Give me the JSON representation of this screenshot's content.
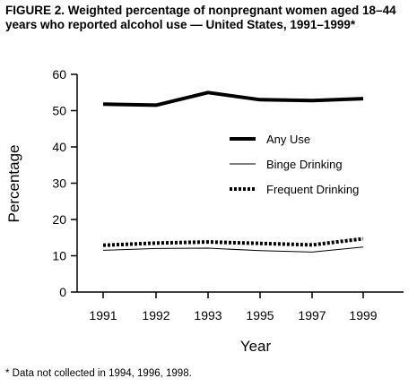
{
  "figure": {
    "title": "FIGURE 2. Weighted percentage of nonpregnant women aged 18–44 years who reported alcohol use — United States, 1991–1999*",
    "footnote": "* Data not collected in 1994, 1996, 1998."
  },
  "chart_data": {
    "type": "line",
    "title": "FIGURE 2. Weighted percentage of nonpregnant women aged 18–44 years who reported alcohol use — United States, 1991–1999*",
    "xlabel": "Year",
    "ylabel": "Percentage",
    "categories": [
      "1991",
      "1992",
      "1993",
      "1995",
      "1997",
      "1999"
    ],
    "ylim": [
      0,
      60
    ],
    "yticks": [
      0,
      10,
      20,
      30,
      40,
      50,
      60
    ],
    "grid": false,
    "legend_position": "right",
    "series": [
      {
        "name": "Any Use",
        "values": [
          51.8,
          51.5,
          55.0,
          53.0,
          52.8,
          53.3
        ],
        "style": "solid-thick",
        "color": "#000000"
      },
      {
        "name": "Binge Drinking",
        "values": [
          11.5,
          12.0,
          12.1,
          11.4,
          11.0,
          12.4
        ],
        "style": "solid-thin",
        "color": "#000000"
      },
      {
        "name": "Frequent Drinking",
        "values": [
          12.9,
          13.5,
          13.8,
          13.4,
          13.0,
          14.7
        ],
        "style": "dotted",
        "color": "#000000"
      }
    ]
  }
}
